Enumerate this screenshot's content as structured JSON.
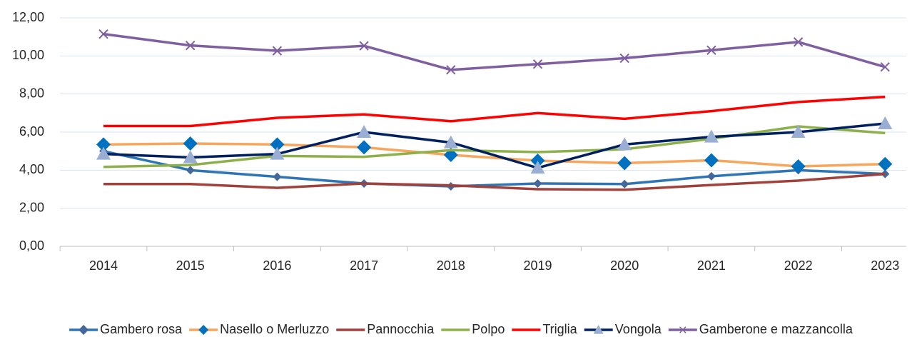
{
  "chart_data": {
    "type": "line",
    "categories": [
      "2014",
      "2015",
      "2016",
      "2017",
      "2018",
      "2019",
      "2020",
      "2021",
      "2022",
      "2023"
    ],
    "ylim": [
      0,
      12
    ],
    "yticks": [
      {
        "value": 0,
        "label": "0,00"
      },
      {
        "value": 2,
        "label": "2,00"
      },
      {
        "value": 4,
        "label": "4,00"
      },
      {
        "value": 6,
        "label": "6,00"
      },
      {
        "value": 8,
        "label": "8,00"
      },
      {
        "value": 10,
        "label": "10,00"
      },
      {
        "value": 12,
        "label": "12,00"
      }
    ],
    "grid": true,
    "legend": "bottom",
    "series": [
      {
        "name": "Gambero rosa",
        "color": "#2e75b6",
        "marker": "diamond",
        "marker_color": "#44689c",
        "values": [
          5.0,
          4.0,
          3.65,
          3.3,
          3.15,
          3.3,
          3.27,
          3.68,
          4.0,
          3.8
        ]
      },
      {
        "name": "Nasello o Merluzzo",
        "color": "#f7a65c",
        "marker": "diamond",
        "marker_color": "#0070c0",
        "values": [
          5.35,
          5.4,
          5.35,
          5.2,
          4.8,
          4.5,
          4.37,
          4.52,
          4.2,
          4.32
        ]
      },
      {
        "name": "Pannocchia",
        "color": "#a0413c",
        "marker": "none",
        "marker_color": "#a0413c",
        "values": [
          3.27,
          3.27,
          3.07,
          3.3,
          3.2,
          3.0,
          2.97,
          3.22,
          3.45,
          3.8
        ]
      },
      {
        "name": "Polpo",
        "color": "#8db04a",
        "marker": "none",
        "marker_color": "#8db04a",
        "values": [
          4.17,
          4.27,
          4.75,
          4.7,
          5.05,
          4.95,
          5.1,
          5.65,
          6.3,
          5.95
        ]
      },
      {
        "name": "Triglia",
        "color": "#ff0000",
        "marker": "none",
        "marker_color": "#ff0000",
        "values": [
          6.32,
          6.32,
          6.75,
          6.93,
          6.57,
          7.0,
          6.7,
          7.1,
          7.58,
          7.85
        ]
      },
      {
        "name": "Vongola",
        "color": "#002060",
        "marker": "triangle",
        "marker_color": "#9aaed4",
        "values": [
          4.85,
          4.67,
          4.85,
          6.0,
          5.45,
          4.12,
          5.35,
          5.75,
          6.0,
          6.45
        ]
      },
      {
        "name": "Gamberone e mazzancolla",
        "color": "#7f5fa0",
        "marker": "x",
        "marker_color": "#7f5fa0",
        "values": [
          11.15,
          10.55,
          10.27,
          10.53,
          9.27,
          9.57,
          9.88,
          10.3,
          10.73,
          9.42
        ]
      }
    ]
  }
}
